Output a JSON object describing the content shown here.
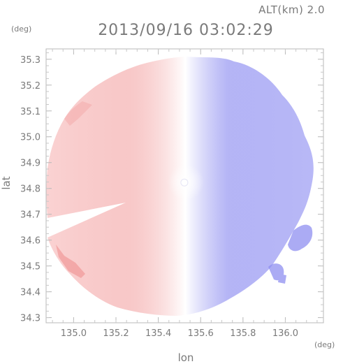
{
  "header": {
    "altitude_text": "ALT(km) 2.0",
    "timestamp": "2013/09/16 03:02:29"
  },
  "chart_data": {
    "type": "heatmap",
    "title": "2013/09/16 03:02:29",
    "subtitle": "ALT(km) 2.0",
    "xlabel": "lon",
    "ylabel": "lat",
    "x_unit": "(deg)",
    "y_unit": "(deg)",
    "xlim": [
      134.87,
      136.18
    ],
    "ylim": [
      34.28,
      35.34
    ],
    "x_ticks": [
      135.0,
      135.2,
      135.4,
      135.6,
      135.8,
      136.0
    ],
    "x_tick_labels": [
      "135.0",
      "135.2",
      "135.4",
      "135.6",
      "135.8",
      "136.0"
    ],
    "y_ticks": [
      34.3,
      34.4,
      34.5,
      34.6,
      34.7,
      34.8,
      34.9,
      35.0,
      35.1,
      35.2,
      35.3
    ],
    "y_tick_labels": [
      "34.3",
      "34.4",
      "34.5",
      "34.6",
      "34.7",
      "34.8",
      "34.9",
      "35.0",
      "35.1",
      "35.2",
      "35.3"
    ],
    "radar_center": [
      135.523,
      34.823
    ],
    "colors": {
      "negative": "#7f7ff0",
      "neutral": "#ffffff",
      "positive": "#f07f7f"
    },
    "grid": false,
    "legend": "none"
  }
}
